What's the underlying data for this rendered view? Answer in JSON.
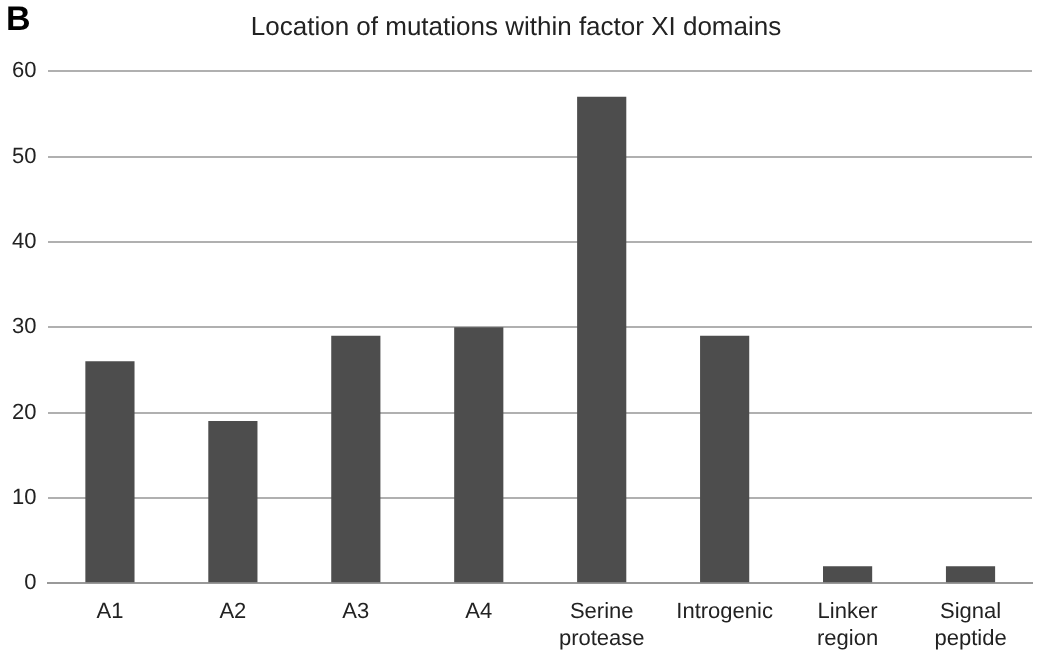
{
  "chart_data": {
    "type": "bar",
    "title": "Location of mutations within factor XI domains",
    "annotations": [
      "B"
    ],
    "categories": [
      "A1",
      "A2",
      "A3",
      "A4",
      "Serine protease",
      "Introgenic",
      "Linker region",
      "Signal peptide"
    ],
    "values": [
      26,
      19,
      29,
      30,
      57,
      29,
      2,
      2
    ],
    "color": "#4d4d4d",
    "ylim": [
      0,
      60
    ],
    "yticks": [
      0,
      10,
      20,
      30,
      40,
      50,
      60
    ],
    "grid": "y",
    "legend": false
  }
}
